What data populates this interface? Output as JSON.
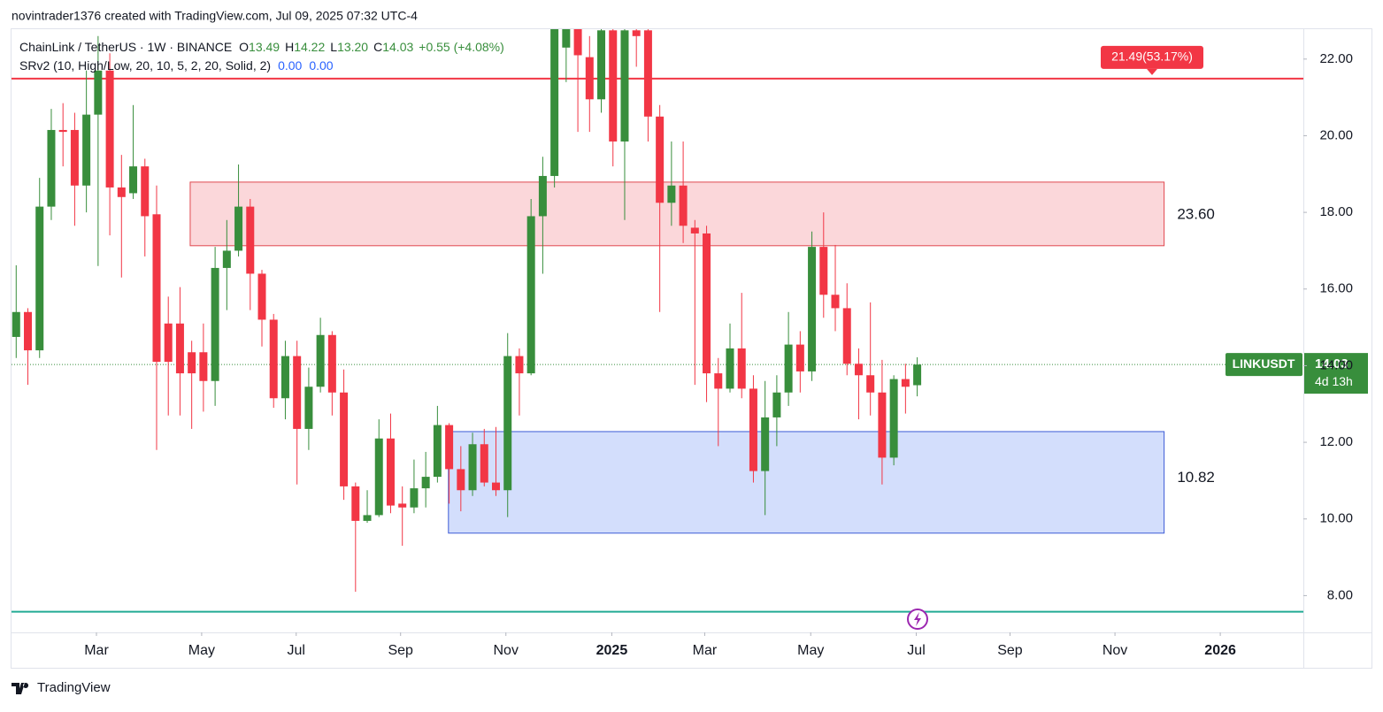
{
  "header": {
    "author_line": "novintrader1376 created with TradingView.com, Jul 09, 2025 07:32 UTC-4",
    "footer_logo": "TradingView"
  },
  "chart_data": {
    "type": "candlestick",
    "title": "ChainLink / TetherUS · 1W · BINANCE",
    "legend_ohlc": [
      {
        "key": "O",
        "text": "13.49"
      },
      {
        "key": "H",
        "text": "14.22"
      },
      {
        "key": "L",
        "text": "13.20"
      },
      {
        "key": "C",
        "text": "14.03"
      }
    ],
    "legend_change": "+0.55 (+4.08%)",
    "indicator": {
      "name": "SRv2 (10, High/Low, 20, 10, 5, 2, 20, Solid, 2)",
      "values": [
        "0.00",
        "0.00"
      ]
    },
    "up_color": "#388e3c",
    "down_color": "#f23645",
    "open": [
      14.75,
      15.4,
      14.4,
      18.15,
      20.15,
      20.15,
      18.7,
      20.55,
      21.7,
      18.65,
      18.5,
      19.2,
      17.95,
      15.1,
      15.1,
      14.35,
      14.35,
      13.6,
      16.55,
      17.0,
      18.15,
      16.4,
      15.2,
      13.15,
      14.25,
      12.35,
      13.45,
      14.8,
      13.3,
      10.85,
      9.95,
      10.1,
      12.1,
      10.4,
      10.3,
      10.8,
      11.1,
      12.45,
      11.3,
      10.75,
      11.95,
      10.95,
      10.75,
      14.25,
      13.8,
      17.9,
      18.95,
      22.3,
      22.8,
      22.05,
      20.95,
      22.75,
      19.85,
      22.75,
      22.75,
      20.5,
      18.25,
      18.7,
      17.6,
      17.45,
      13.8,
      13.4,
      14.45,
      13.4,
      11.25,
      12.65,
      13.3,
      14.55,
      13.85,
      17.1,
      15.85,
      15.5,
      14.05,
      13.75,
      13.3,
      11.6,
      13.65,
      13.49
    ],
    "high": [
      16.62,
      15.5,
      18.9,
      20.7,
      20.85,
      20.6,
      21.7,
      22.6,
      22.15,
      19.5,
      20.8,
      19.4,
      18.7,
      15.8,
      16.05,
      14.65,
      15.1,
      17.1,
      17.8,
      19.25,
      18.35,
      16.5,
      15.35,
      14.65,
      14.65,
      13.95,
      15.25,
      14.9,
      13.9,
      10.95,
      10.75,
      12.6,
      12.75,
      10.85,
      11.55,
      11.75,
      12.95,
      12.5,
      11.9,
      12.25,
      12.35,
      12.4,
      14.85,
      14.45,
      18.35,
      19.45,
      23.0,
      23.2,
      23.1,
      22.6,
      23.3,
      23.0,
      23.1,
      23.0,
      23.0,
      20.8,
      19.85,
      19.85,
      17.8,
      17.65,
      14.2,
      15.1,
      15.9,
      13.75,
      13.6,
      13.75,
      15.4,
      14.9,
      17.5,
      18.0,
      17.15,
      16.15,
      14.45,
      15.65,
      14.15,
      13.75,
      14.05,
      14.22
    ],
    "low": [
      14.2,
      13.5,
      14.2,
      17.8,
      19.2,
      17.65,
      18.0,
      16.6,
      17.4,
      16.3,
      18.35,
      16.85,
      11.8,
      12.7,
      12.7,
      12.35,
      12.8,
      12.95,
      15.45,
      16.85,
      15.45,
      14.5,
      12.9,
      12.6,
      10.9,
      11.8,
      13.3,
      12.7,
      10.5,
      8.1,
      9.9,
      10.05,
      10.15,
      9.3,
      10.15,
      10.3,
      10.95,
      10.4,
      10.2,
      10.6,
      10.85,
      10.6,
      10.05,
      12.7,
      13.75,
      16.4,
      18.65,
      21.4,
      20.1,
      20.1,
      20.6,
      19.2,
      17.8,
      21.8,
      19.85,
      15.4,
      17.65,
      17.2,
      13.5,
      13.05,
      11.9,
      13.3,
      13.15,
      10.95,
      10.1,
      11.9,
      12.95,
      13.3,
      13.6,
      15.25,
      14.9,
      13.75,
      12.6,
      12.7,
      10.9,
      11.4,
      12.75,
      13.2
    ],
    "close": [
      15.4,
      14.4,
      18.15,
      20.15,
      20.1,
      18.7,
      20.55,
      21.7,
      18.65,
      18.4,
      19.2,
      17.9,
      14.1,
      14.1,
      13.8,
      13.8,
      13.6,
      16.55,
      17.0,
      18.15,
      16.4,
      15.2,
      13.15,
      14.25,
      12.35,
      13.45,
      14.8,
      13.3,
      10.85,
      9.95,
      10.1,
      12.1,
      10.35,
      10.3,
      10.8,
      11.1,
      12.45,
      11.3,
      10.75,
      11.95,
      10.95,
      10.75,
      14.25,
      13.8,
      17.9,
      18.95,
      22.8,
      22.9,
      22.1,
      20.95,
      22.75,
      19.85,
      22.75,
      22.6,
      20.5,
      18.25,
      18.7,
      17.65,
      17.45,
      13.8,
      13.4,
      14.45,
      13.4,
      11.25,
      12.65,
      13.3,
      14.55,
      13.85,
      17.1,
      15.85,
      15.5,
      14.05,
      13.75,
      13.3,
      11.6,
      13.65,
      13.45,
      14.03
    ],
    "xlim": [
      -0.4,
      110
    ],
    "xticks": [
      {
        "value": 6.86,
        "label": "Mar"
      },
      {
        "value": 15.85,
        "label": "May"
      },
      {
        "value": 23.93,
        "label": "Jul"
      },
      {
        "value": 32.85,
        "label": "Sep"
      },
      {
        "value": 41.85,
        "label": "Nov"
      },
      {
        "value": 50.9,
        "label": "2025"
      },
      {
        "value": 58.84,
        "label": "Mar"
      },
      {
        "value": 67.9,
        "label": "May"
      },
      {
        "value": 76.92,
        "label": "Jul"
      },
      {
        "value": 84.93,
        "label": "Sep"
      },
      {
        "value": 93.9,
        "label": "Nov"
      },
      {
        "value": 102.9,
        "label": "2026"
      }
    ],
    "ylim": [
      7.04,
      22.78
    ],
    "yticks": [
      {
        "value": 8,
        "label": "8.00"
      },
      {
        "value": 10,
        "label": "10.00"
      },
      {
        "value": 12,
        "label": "12.00"
      },
      {
        "value": 14,
        "label": "14.00"
      },
      {
        "value": 16,
        "label": "16.00"
      },
      {
        "value": 18,
        "label": "18.00"
      },
      {
        "value": 20,
        "label": "20.00"
      },
      {
        "value": 22,
        "label": "22.00"
      }
    ],
    "zones": [
      {
        "top": 18.79,
        "bottom": 17.13,
        "start": 14.87,
        "end": 98.1,
        "fill": "#fbd7da",
        "stroke": "#e0474f",
        "label": "23.60"
      },
      {
        "top": 12.28,
        "bottom": 9.63,
        "start": 36.94,
        "end": 98.1,
        "fill": "#d3defc",
        "stroke": "#3d5bd6",
        "label": "10.82"
      }
    ],
    "price_lines": [
      {
        "value": 21.49,
        "color": "#f23645",
        "label": "21.49(53.17%)"
      },
      {
        "value": 7.58,
        "color": "#22ab94"
      }
    ],
    "last_price": {
      "value": 14.03,
      "symbol": "LINKUSDT",
      "text": "14.03",
      "countdown": "4d 13h"
    }
  }
}
